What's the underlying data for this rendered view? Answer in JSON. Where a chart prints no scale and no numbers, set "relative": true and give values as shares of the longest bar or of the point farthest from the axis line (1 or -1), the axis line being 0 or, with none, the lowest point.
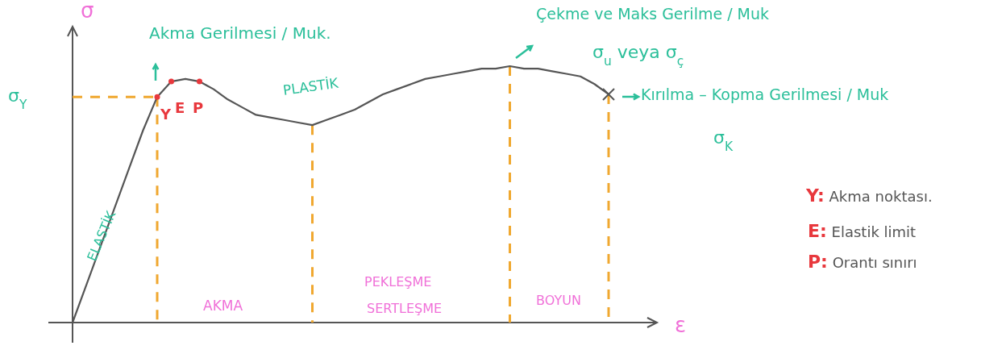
{
  "chart_data": {
    "type": "line",
    "relative": true,
    "xlabel": "ε",
    "ylabel": "σ",
    "grid": "x",
    "categories": [
      null,
      null,
      null,
      null,
      null,
      null,
      null,
      null,
      null,
      null,
      null,
      null,
      null,
      null,
      null,
      null,
      null,
      null,
      null,
      null,
      null,
      null,
      null,
      null,
      null,
      null,
      null,
      null,
      null,
      null,
      null,
      null,
      null,
      null,
      null,
      null,
      null,
      null,
      null
    ],
    "series": [
      {
        "color": "#555555",
        "values": [
          0,
          0.15,
          0.3,
          0.45,
          0.6,
          0.75,
          0.88,
          0.94,
          0.95,
          0.94,
          0.91,
          0.87,
          0.84,
          0.81,
          0.8,
          0.79,
          0.78,
          0.77,
          0.79,
          0.81,
          0.83,
          0.86,
          0.89,
          0.91,
          0.93,
          0.95,
          0.96,
          0.97,
          0.98,
          0.99,
          0.99,
          1,
          0.99,
          0.99,
          0.98,
          0.97,
          0.96,
          0.93,
          0.89
        ]
      }
    ],
    "ref_lines": [
      {
        "axis": "y",
        "value": 0.88,
        "label": "σ$_{Y}$",
        "color": "#f0a830",
        "line_style": "dashed"
      }
    ],
    "annotations": [
      "Y",
      "E",
      "P",
      "Akma Gerilmesi / Muk.",
      "Çekme ve Maks Gerilme / Muk",
      "σ$_{u}$ veya σ$_{ç}$",
      "Kırılma – Kopma Gerilmesi / Muk",
      "σ$_{K}$",
      "ELASTİK",
      "PLASTİK",
      "AKMA",
      "PEKLEŞME",
      "SERTLEŞME",
      "BOYUN",
      "Y: Akma noktası.",
      "E: Elastik limit",
      "P: Orantı sınırı"
    ]
  }
}
